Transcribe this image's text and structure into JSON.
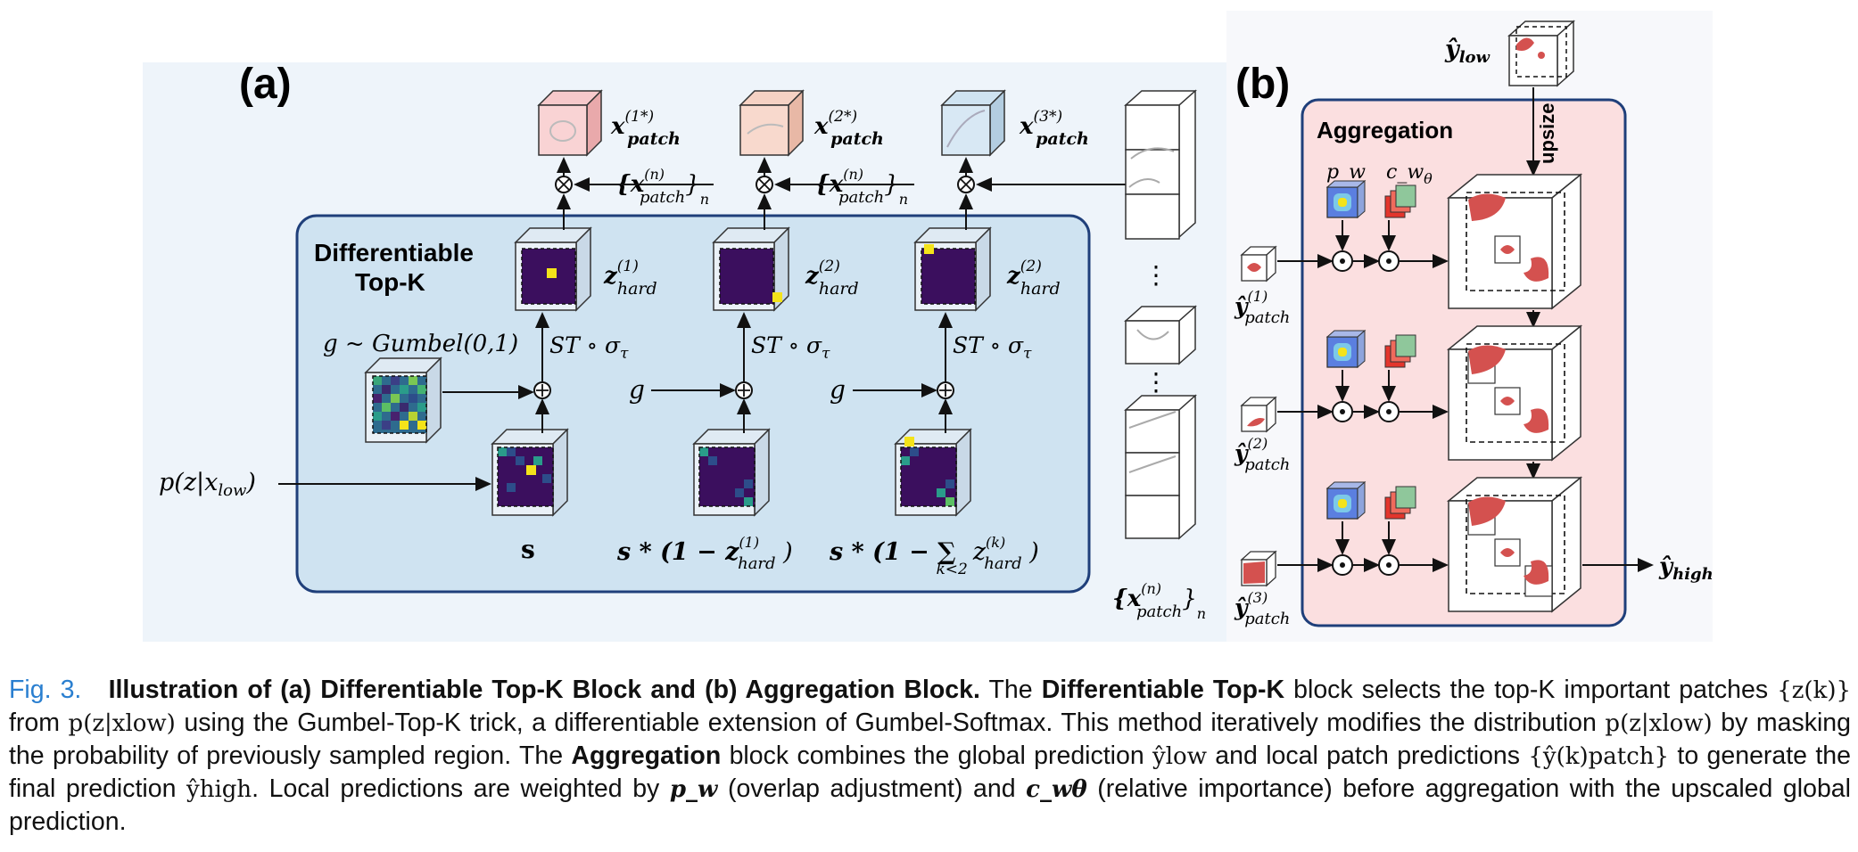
{
  "panel_a": {
    "label": "(a)",
    "block_title_line1": "Differentiable",
    "block_title_line2": "Top-K",
    "gumbel_label": "g ~ Gumbel(0,1)",
    "g": "g",
    "st_sigma": "ST ∘ σ",
    "tau": "τ",
    "input_label": "p(z|x",
    "input_sub": "low",
    "s_label": "s",
    "s_expr_1": "s * (1 − z",
    "s_expr_2": "s * (1 − ∑",
    "k_lt_2": "k<2",
    "z_hard": "z",
    "hard": "hard",
    "z_sups": [
      "(1)",
      "(2)",
      "(2)"
    ],
    "x_patch": "x",
    "patch": "patch",
    "x_sups": [
      "(1*)",
      "(2*)",
      "(3*)"
    ],
    "xn_label": "{x",
    "xn_sup": "(n)",
    "xn_close": "}",
    "n": "n",
    "dots": "⋮"
  },
  "panel_b": {
    "label": "(b)",
    "aggregation_title": "Aggregation",
    "y_low": "ŷ",
    "low": "low",
    "y_high": "ŷ",
    "high": "high",
    "upsize": "upsize",
    "p_w": "p_w",
    "c_w": "c_w",
    "theta": "θ",
    "y_patch": "ŷ",
    "patch": "patch",
    "y_sups": [
      "(1)",
      "(2)",
      "(3)"
    ],
    "odot": "⊙"
  },
  "caption": {
    "fig_label": "Fig. 3.",
    "bold_title": "Illustration of (a) Differentiable Top-K Block and (b) Aggregation Block.",
    "t1": " The ",
    "b1": "Differentiable Top-K",
    "t2": " block selects the top-K important patches ",
    "m1": "{z(k)}",
    "t3": " from ",
    "m2": "p(z|xlow)",
    "t4": " using the Gumbel-Top-K trick, a differentiable extension of Gumbel-Softmax. This method iteratively modifies the distribution ",
    "m3": "p(z|xlow)",
    "t5": " by masking the probability of previously sampled region. The ",
    "b2": "Aggregation",
    "t6": " block combines the global prediction ",
    "m4": "ŷlow",
    "t7": " and local patch predictions ",
    "m5": "{ŷ(k)patch}",
    "t8": " to generate the final prediction ",
    "m6": "ŷhigh",
    "t9": ". Local predictions are weighted by ",
    "m7": "p_w",
    "t10": " (overlap adjustment) and ",
    "m8": "c_wθ",
    "t11": " (relative importance) before aggregation with the upscaled global prediction."
  },
  "colors": {
    "panel_a_bg": "#eef4fa",
    "topk_box": "#cfe3f1",
    "topk_border": "#1f3f7a",
    "agg_box": "#fbdfe0",
    "agg_border": "#1f3f7a",
    "dark_purple": "#3b0f5e",
    "yellow": "#f4e31a",
    "organ_red": "#d4514f",
    "caption_blue": "#2a7fd0"
  }
}
